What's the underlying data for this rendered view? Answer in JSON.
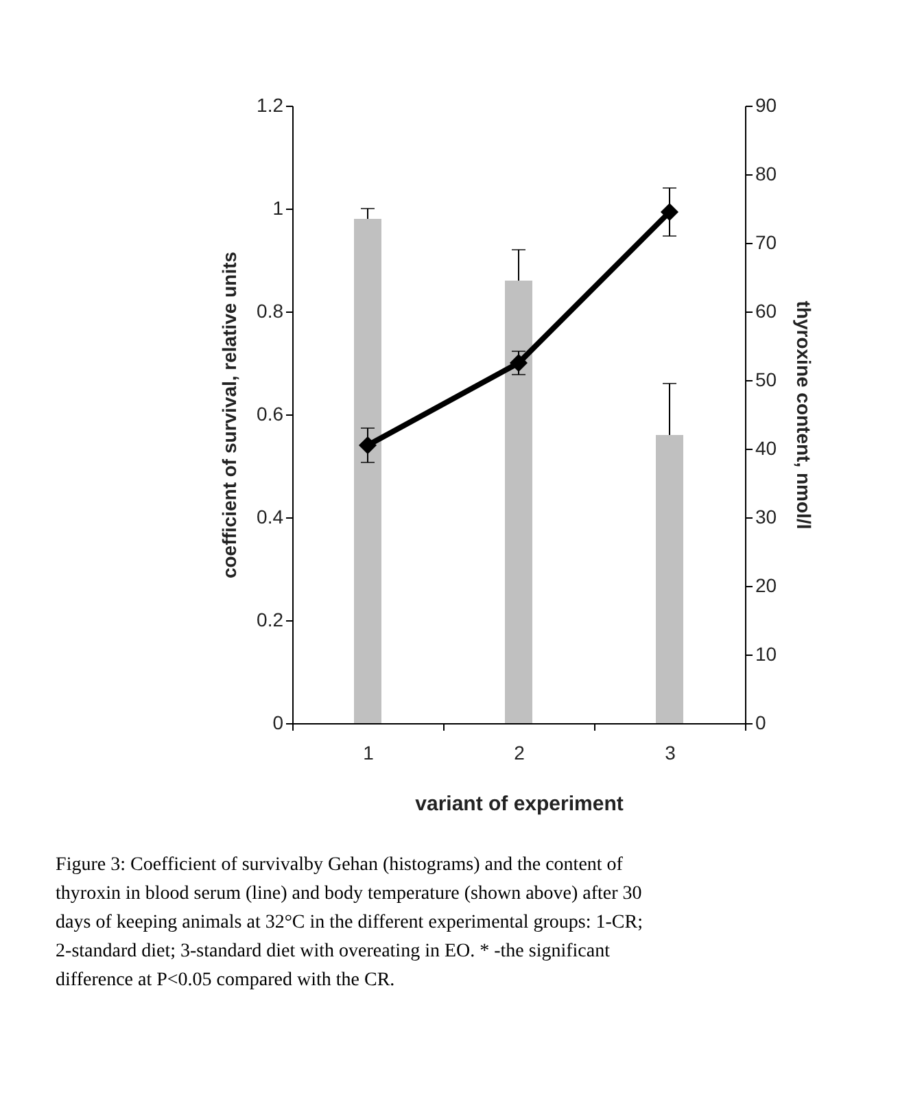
{
  "chart_data": {
    "type": "bar",
    "categories": [
      "1",
      "2",
      "3"
    ],
    "xlabel": "variant of experiment",
    "ylabel": "coefficient of survival, relative units",
    "y2label": "thyroxine content, nmol/l",
    "ylim": [
      0,
      1.2
    ],
    "yticks": [
      0,
      0.2,
      0.4,
      0.6,
      0.8,
      1,
      1.2
    ],
    "y2lim": [
      0,
      90
    ],
    "y2ticks": [
      0,
      10,
      20,
      30,
      40,
      50,
      60,
      70,
      80,
      90
    ],
    "grid": false,
    "series": [
      {
        "color": "#c0c0c0",
        "values": [
          0.98,
          0.86,
          0.56
        ],
        "errors": [
          [
            0.98,
            1.0
          ],
          [
            0.86,
            0.92
          ],
          [
            0.56,
            0.66
          ]
        ]
      },
      {
        "type": "line",
        "axis": "y2",
        "color": "#000000",
        "marker": "diamond",
        "line_style": "solid",
        "values": [
          40.5,
          52.5,
          74.5
        ],
        "errors": [
          2.5,
          1.7,
          3.5
        ]
      }
    ],
    "annotations": [
      "Figure 3: Coefficient of survivalby Gehan (histograms) and the content of thyroxin in blood serum (line) and body temperature (shown above) after 30 days of keeping animals at 32°C in the different experimental groups: 1-CR; 2-standard diet; 3-standard diet with overeating in EO. * -the significant difference at P<0.05 compared with the CR."
    ]
  }
}
